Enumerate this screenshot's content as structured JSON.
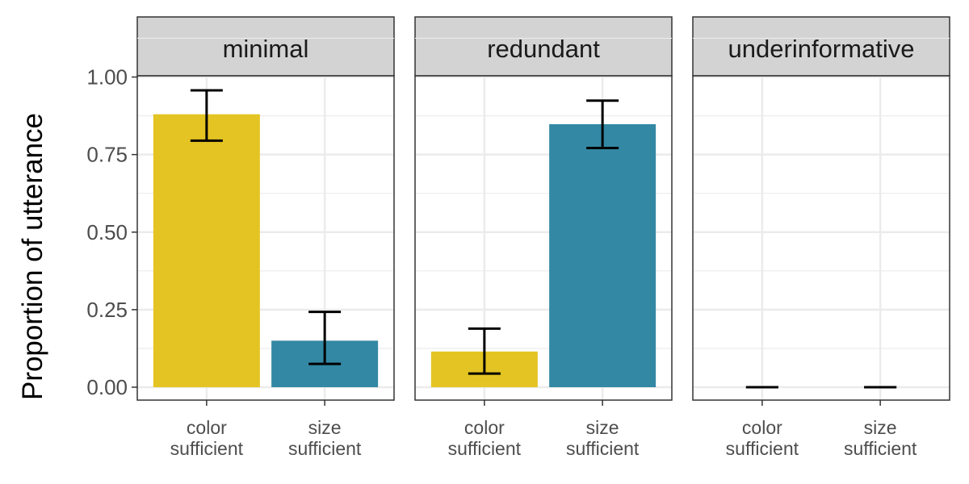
{
  "chart_data": {
    "type": "bar",
    "ylabel": "Proportion of utterance",
    "xlabel": "",
    "ylim": [
      0,
      1.18
    ],
    "yticks": [
      "0.00",
      "0.25",
      "0.50",
      "0.75",
      "1.00"
    ],
    "ytick_values": [
      0,
      0.25,
      0.5,
      0.75,
      1.0
    ],
    "categories": [
      [
        "color",
        "sufficient"
      ],
      [
        "size",
        "sufficient"
      ]
    ],
    "colors": {
      "color sufficient": "#E4C422",
      "size sufficient": "#3388A4"
    },
    "grid": true,
    "facets": [
      {
        "label": "minimal",
        "values": [
          0.88,
          0.15
        ],
        "ci_low": [
          0.795,
          0.075
        ],
        "ci_high": [
          0.957,
          0.243
        ]
      },
      {
        "label": "redundant",
        "values": [
          0.115,
          0.848
        ],
        "ci_low": [
          0.044,
          0.771
        ],
        "ci_high": [
          0.189,
          0.924
        ]
      },
      {
        "label": "underinformative",
        "values": [
          0.0,
          0.0
        ],
        "ci_low": [
          0.0,
          0.0
        ],
        "ci_high": [
          0.0,
          0.0
        ]
      }
    ]
  }
}
